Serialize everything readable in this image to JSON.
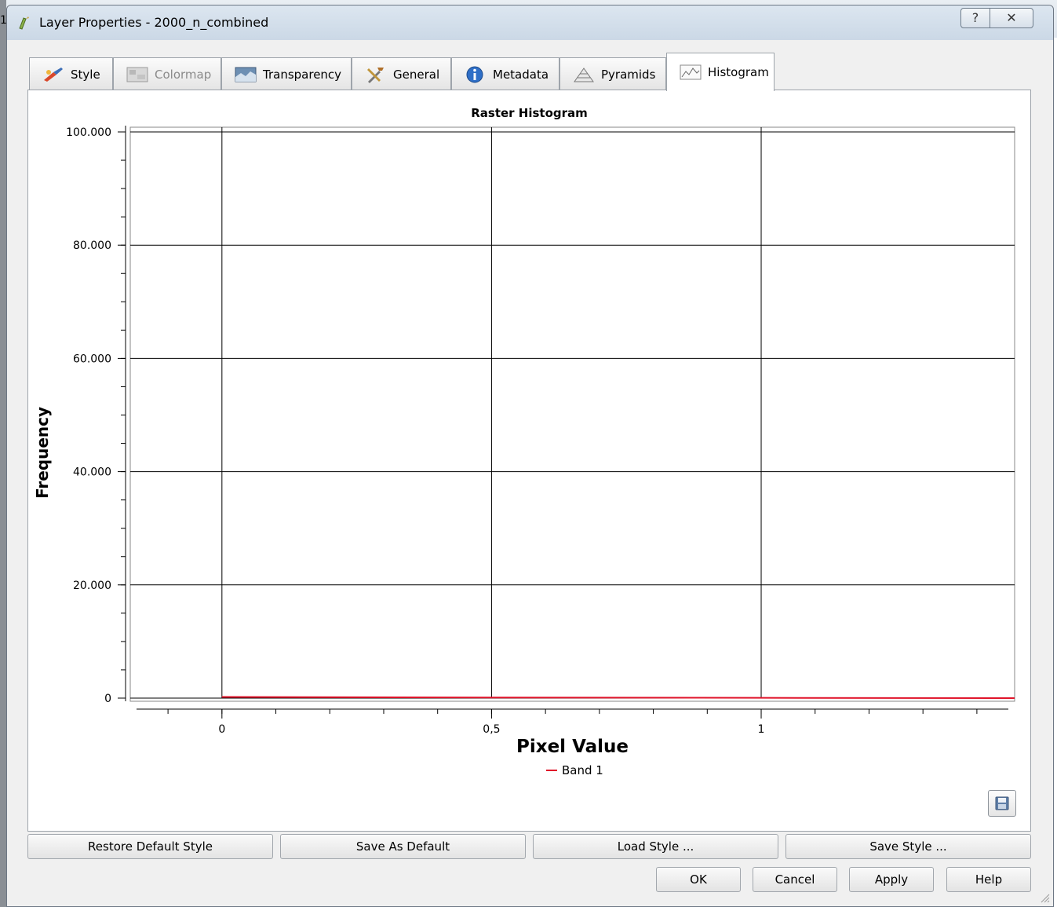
{
  "window": {
    "title": "Layer Properties - 2000_n_combined",
    "help_glyph": "?",
    "close_glyph": "✕",
    "behind_digit": "1."
  },
  "tabs": [
    {
      "label": "Style",
      "icon": "paintbrush-icon",
      "active": false,
      "enabled": true
    },
    {
      "label": "Colormap",
      "icon": "colormap-icon",
      "active": false,
      "enabled": false
    },
    {
      "label": "Transparency",
      "icon": "transparency-icon",
      "active": false,
      "enabled": true
    },
    {
      "label": "General",
      "icon": "tools-icon",
      "active": false,
      "enabled": true
    },
    {
      "label": "Metadata",
      "icon": "info-icon",
      "active": false,
      "enabled": true
    },
    {
      "label": "Pyramids",
      "icon": "pyramid-icon",
      "active": false,
      "enabled": true
    },
    {
      "label": "Histogram",
      "icon": "histogram-icon",
      "active": true,
      "enabled": true
    }
  ],
  "chart_data": {
    "type": "line",
    "title": "Raster Histogram",
    "xlabel": "Pixel Value",
    "ylabel": "Frequency",
    "xlim": [
      -0.17,
      1.47
    ],
    "ylim": [
      0,
      100000
    ],
    "x_ticks": [
      {
        "value": 0,
        "label": "0"
      },
      {
        "value": 0.5,
        "label": "0,5"
      },
      {
        "value": 1,
        "label": "1"
      }
    ],
    "y_ticks": [
      {
        "value": 0,
        "label": "0"
      },
      {
        "value": 20000,
        "label": "20.000"
      },
      {
        "value": 40000,
        "label": "40.000"
      },
      {
        "value": 60000,
        "label": "60.000"
      },
      {
        "value": 80000,
        "label": "80.000"
      },
      {
        "value": 100000,
        "label": "100.000"
      }
    ],
    "grid": true,
    "legend_position": "bottom-center",
    "series": [
      {
        "name": "Band 1",
        "color": "#e0142a",
        "x": [
          0,
          0.5,
          1,
          1.47
        ],
        "y": [
          200,
          100,
          50,
          0
        ]
      }
    ]
  },
  "buttons": {
    "restore_default_style": "Restore Default Style",
    "save_as_default": "Save As Default",
    "load_style": "Load Style ...",
    "save_style": "Save Style ...",
    "ok": "OK",
    "cancel": "Cancel",
    "apply": "Apply",
    "help": "Help"
  },
  "colors": {
    "series": "#e0142a",
    "grid": "#000000",
    "panel_bg": "#ffffff",
    "dialog_bg": "#f0f0f0"
  }
}
